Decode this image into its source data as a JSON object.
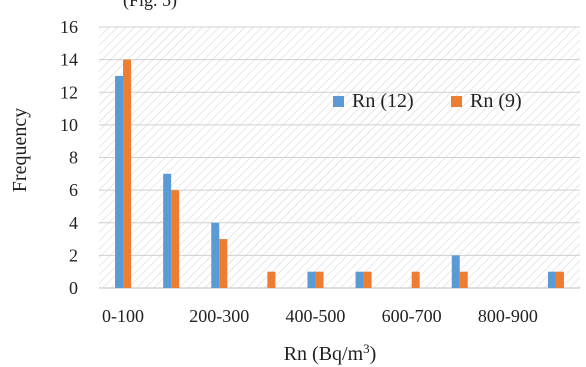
{
  "top_partial_text": "(Fig. 5)",
  "chart_data": {
    "type": "bar",
    "xlabel": "Rn (Bq/m³)",
    "ylabel": "Frequency",
    "ylim": [
      0,
      16
    ],
    "yticks": [
      "0",
      "2",
      "4",
      "6",
      "8",
      "10",
      "12",
      "14",
      "16"
    ],
    "categories": [
      "0-100",
      "100-200",
      "200-300",
      "300-400",
      "400-500",
      "500-600",
      "600-700",
      "700-800",
      "800-900",
      "900-1000"
    ],
    "visible_tick_labels": [
      "0-100",
      "",
      "200-300",
      "",
      "400-500",
      "",
      "600-700",
      "",
      "800-900",
      ""
    ],
    "series": [
      {
        "name": "Rn (12)",
        "color": "#5b9bd5",
        "values": [
          13,
          7,
          4,
          0,
          1,
          1,
          0,
          2,
          0,
          1
        ]
      },
      {
        "name": "Rn (9)",
        "color": "#ed7d31",
        "values": [
          14,
          6,
          3,
          1,
          1,
          1,
          1,
          1,
          0,
          1
        ]
      }
    ],
    "grid": true,
    "plot_background": "hatched",
    "legend_position": "top-right"
  }
}
